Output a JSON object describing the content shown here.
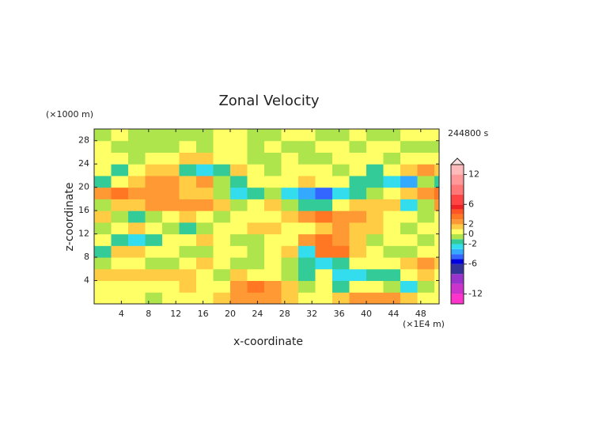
{
  "chart_data": {
    "type": "heatmap",
    "title": "Zonal Velocity",
    "xlabel": "x-coordinate",
    "ylabel": "z-coordinate",
    "x_unit": "(×1E4 m)",
    "y_unit": "(×1000 m)",
    "annotation": "244800 s",
    "xlim": [
      0,
      50.7
    ],
    "ylim": [
      0,
      30
    ],
    "xticks": [
      4,
      8,
      12,
      16,
      20,
      24,
      28,
      32,
      36,
      40,
      44,
      48
    ],
    "yticks": [
      4,
      8,
      12,
      16,
      20,
      24,
      28
    ],
    "x": [
      1.25,
      3.75,
      6.25,
      8.75,
      11.25,
      13.75,
      16.25,
      18.75,
      21.25,
      23.75,
      26.25,
      28.75,
      31.25,
      33.75,
      36.25,
      38.75,
      41.25,
      43.75,
      46.25,
      48.75,
      51.25
    ],
    "y": [
      1,
      3,
      5,
      7,
      9,
      11,
      13,
      15,
      17,
      19,
      21,
      23,
      25,
      27,
      29
    ],
    "z": [
      [
        0.5,
        0.5,
        0.5,
        -0.5,
        0.5,
        0.5,
        0.5,
        1.5,
        2.5,
        2.5,
        2.5,
        1.5,
        0.5,
        0.5,
        1.5,
        2.5,
        2.5,
        2.5,
        1.5,
        0.5,
        0.5
      ],
      [
        0.5,
        0.5,
        0.5,
        0.5,
        0.5,
        1.5,
        0.5,
        0.5,
        2.5,
        3.5,
        2.5,
        1.5,
        -0.5,
        0.5,
        -1.5,
        0.5,
        0.5,
        -0.5,
        -2.5,
        -0.5,
        0.5
      ],
      [
        1.5,
        1.5,
        1.5,
        1.5,
        1.5,
        1.5,
        0.5,
        -0.5,
        1.5,
        0.5,
        0.5,
        -0.5,
        -1.5,
        0.5,
        -2.5,
        -2.5,
        -1.5,
        -1.5,
        0.5,
        1.5,
        0.5
      ],
      [
        -0.5,
        0.5,
        0.5,
        -0.5,
        -0.5,
        0.5,
        1.5,
        0.5,
        -0.5,
        -0.5,
        0.5,
        -0.5,
        -1.5,
        -2.5,
        -1.5,
        0.5,
        0.5,
        0.5,
        1.5,
        2.5,
        1.5
      ],
      [
        -1.5,
        1.5,
        1.5,
        0.5,
        0.5,
        -0.5,
        -0.5,
        0.5,
        0.5,
        -0.5,
        0.5,
        1.5,
        -2.5,
        3.5,
        3.5,
        1.5,
        0.5,
        -0.5,
        -0.5,
        0.5,
        0.5
      ],
      [
        0.5,
        -1.5,
        -2.5,
        -1.5,
        0.5,
        0.5,
        1.5,
        0.5,
        -0.5,
        -0.5,
        0.5,
        0.5,
        2.5,
        3.5,
        2.5,
        1.5,
        -0.5,
        0.5,
        0.5,
        -0.5,
        0.5
      ],
      [
        -0.5,
        0.5,
        1.5,
        0.5,
        -0.5,
        -1.5,
        -0.5,
        0.5,
        0.5,
        1.5,
        1.5,
        0.5,
        0.5,
        1.5,
        2.5,
        1.5,
        1.5,
        0.5,
        -0.5,
        0.5,
        0.5
      ],
      [
        1.5,
        -0.5,
        -1.5,
        -0.5,
        0.5,
        1.5,
        0.5,
        -0.5,
        0.5,
        0.5,
        0.5,
        1.5,
        2.5,
        3.5,
        2.5,
        2.5,
        1.5,
        0.5,
        0.5,
        -0.5,
        0.5
      ],
      [
        -0.5,
        1.5,
        1.5,
        2.5,
        2.5,
        2.5,
        2.5,
        1.5,
        -0.5,
        0.5,
        1.5,
        -0.5,
        -1.5,
        -1.5,
        0.5,
        1.5,
        1.5,
        1.5,
        -2.5,
        -0.5,
        2.5
      ],
      [
        2.5,
        3.5,
        2.5,
        2.5,
        2.5,
        1.5,
        1.5,
        -0.5,
        -2.5,
        -1.5,
        -0.5,
        -2.5,
        -3.5,
        -4.5,
        -2.5,
        -1.5,
        -0.5,
        0.5,
        1.5,
        2.5,
        3.5
      ],
      [
        -1.5,
        0.5,
        1.5,
        2.5,
        2.5,
        1.5,
        2.5,
        -0.5,
        -1.5,
        0.5,
        0.5,
        0.5,
        1.5,
        0.5,
        0.5,
        -1.5,
        -1.5,
        -2.5,
        -3.5,
        -0.5,
        -1.5
      ],
      [
        0.5,
        -1.5,
        0.5,
        1.5,
        1.5,
        -1.5,
        -2.5,
        -1.5,
        1.5,
        0.5,
        -0.5,
        0.5,
        0.5,
        0.5,
        -0.5,
        0.5,
        -1.5,
        0.5,
        1.5,
        2.5,
        1.5
      ],
      [
        0.5,
        0.5,
        -0.5,
        0.5,
        0.5,
        1.5,
        1.5,
        0.5,
        0.5,
        -0.5,
        -0.5,
        0.5,
        -0.5,
        -0.5,
        0.5,
        0.5,
        0.5,
        -0.5,
        0.5,
        0.5,
        0.5
      ],
      [
        0.5,
        -0.5,
        -0.5,
        -0.5,
        -0.5,
        0.5,
        -0.5,
        0.5,
        0.5,
        -0.5,
        0.5,
        -0.5,
        -0.5,
        0.5,
        0.5,
        -0.5,
        0.5,
        0.5,
        -0.5,
        -0.5,
        -0.5
      ],
      [
        -0.5,
        0.5,
        -0.5,
        -0.5,
        -0.5,
        -0.5,
        -0.5,
        0.5,
        0.5,
        -0.5,
        -0.5,
        0.5,
        0.5,
        -0.5,
        -0.5,
        0.5,
        -0.5,
        -0.5,
        0.5,
        0.5,
        0.5
      ]
    ],
    "colorbar": {
      "levels": [
        -14,
        -12,
        -10,
        -8,
        -6,
        -5,
        -4,
        -3,
        -2,
        -1,
        0,
        1,
        2,
        3,
        4,
        5,
        6,
        8,
        10,
        12,
        14
      ],
      "colors": [
        "#ff33cc",
        "#cc33cc",
        "#9933cc",
        "#333399",
        "#0000dd",
        "#3366ff",
        "#33aaff",
        "#33ddee",
        "#33cc99",
        "#aee44c",
        "#ffff66",
        "#ffcc44",
        "#ff9933",
        "#ff7722",
        "#ff5522",
        "#ee2222",
        "#ff4444",
        "#ff7777",
        "#ff9999",
        "#ffbbbb"
      ],
      "ticks": [
        12,
        6,
        2,
        0,
        -2,
        -6,
        -12
      ]
    }
  }
}
